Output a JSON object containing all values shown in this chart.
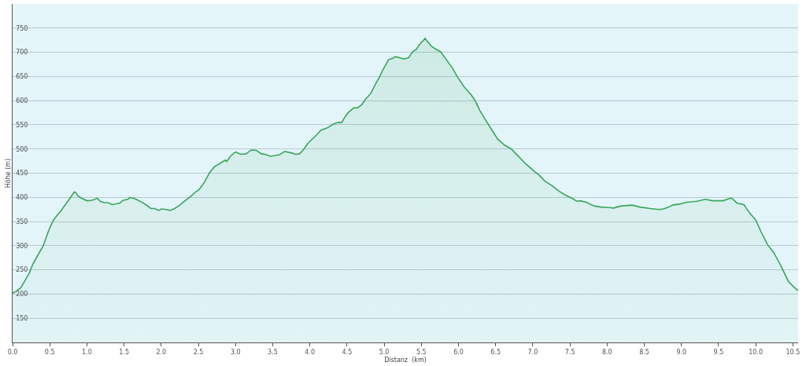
{
  "chart_data": {
    "type": "area",
    "xlabel": "Distanz  (km)",
    "ylabel": "Höhe (m)",
    "x": [
      0,
      0.04,
      0.11,
      0.16,
      0.22,
      0.27,
      0.32,
      0.36,
      0.41,
      0.44,
      0.5,
      0.55,
      0.59,
      0.65,
      0.71,
      0.74,
      0.78,
      0.83,
      0.85,
      0.88,
      0.93,
      1.0,
      1.07,
      1.14,
      1.18,
      1.23,
      1.28,
      1.34,
      1.44,
      1.49,
      1.55,
      1.58,
      1.63,
      1.69,
      1.76,
      1.81,
      1.86,
      1.91,
      1.97,
      2.0,
      2.07,
      2.12,
      2.18,
      2.25,
      2.32,
      2.39,
      2.46,
      2.51,
      2.58,
      2.65,
      2.72,
      2.79,
      2.86,
      2.88,
      2.93,
      3.0,
      3.07,
      3.14,
      3.21,
      3.28,
      3.35,
      3.4,
      3.47,
      3.59,
      3.66,
      3.75,
      3.81,
      3.86,
      3.91,
      3.98,
      4.07,
      4.15,
      4.24,
      4.31,
      4.38,
      4.43,
      4.47,
      4.52,
      4.59,
      4.64,
      4.7,
      4.75,
      4.82,
      4.89,
      4.94,
      4.99,
      5.06,
      5.12,
      5.15,
      5.2,
      5.27,
      5.33,
      5.38,
      5.43,
      5.5,
      5.52,
      5.55,
      5.59,
      5.64,
      5.69,
      5.76,
      5.85,
      5.92,
      5.99,
      6.08,
      6.17,
      6.22,
      6.29,
      6.36,
      6.45,
      6.53,
      6.62,
      6.71,
      6.8,
      6.9,
      7.01,
      7.08,
      7.16,
      7.25,
      7.36,
      7.46,
      7.53,
      7.59,
      7.64,
      7.72,
      7.83,
      7.92,
      8.02,
      8.09,
      8.18,
      8.34,
      8.44,
      8.58,
      8.7,
      8.76,
      8.83,
      8.88,
      8.97,
      9.07,
      9.21,
      9.32,
      9.42,
      9.56,
      9.65,
      9.68,
      9.75,
      9.84,
      9.91,
      10.0,
      10.07,
      10.16,
      10.24,
      10.33,
      10.44,
      10.51,
      10.57
    ],
    "series": [
      {
        "color": "#3aa55b",
        "values": [
          202,
          205,
          213,
          226,
          242,
          261,
          275,
          286,
          299,
          312,
          337,
          353,
          361,
          372,
          385,
          391,
          400,
          411,
          410,
          403,
          398,
          393,
          394,
          398,
          392,
          389,
          389,
          385,
          388,
          394,
          396,
          400,
          398,
          394,
          388,
          383,
          377,
          377,
          373,
          376,
          375,
          373,
          377,
          384,
          393,
          401,
          411,
          416,
          431,
          451,
          464,
          470,
          477,
          474,
          485,
          494,
          489,
          490,
          498,
          497,
          490,
          489,
          485,
          488,
          495,
          492,
          489,
          490,
          498,
          513,
          526,
          539,
          544,
          551,
          555,
          555,
          566,
          576,
          585,
          585,
          592,
          603,
          615,
          636,
          650,
          666,
          685,
          688,
          691,
          689,
          686,
          689,
          701,
          706,
          721,
          723,
          729,
          721,
          712,
          707,
          701,
          682,
          667,
          648,
          628,
          612,
          601,
          579,
          561,
          539,
          520,
          508,
          500,
          486,
          470,
          455,
          447,
          434,
          425,
          412,
          403,
          398,
          392,
          393,
          390,
          382,
          380,
          379,
          378,
          382,
          384,
          380,
          377,
          375,
          376,
          380,
          384,
          386,
          390,
          392,
          396,
          393,
          393,
          398,
          398,
          388,
          385,
          369,
          353,
          329,
          302,
          286,
          261,
          226,
          215,
          207
        ]
      }
    ],
    "xlim": [
      0,
      10.57
    ],
    "ylim": [
      100,
      800
    ],
    "xticks": [
      {
        "value": 0,
        "label": "0.0"
      },
      {
        "value": 0.5,
        "label": "0.5"
      },
      {
        "value": 1,
        "label": "1.0"
      },
      {
        "value": 1.5,
        "label": "1.5"
      },
      {
        "value": 2,
        "label": "2.0"
      },
      {
        "value": 2.5,
        "label": "2.5"
      },
      {
        "value": 3,
        "label": "3.0"
      },
      {
        "value": 3.5,
        "label": "3.5"
      },
      {
        "value": 4,
        "label": "4.0"
      },
      {
        "value": 4.5,
        "label": "4.5"
      },
      {
        "value": 5,
        "label": "5.0"
      },
      {
        "value": 5.5,
        "label": "5.5"
      },
      {
        "value": 6,
        "label": "6.0"
      },
      {
        "value": 6.5,
        "label": "6.5"
      },
      {
        "value": 7,
        "label": "7.0"
      },
      {
        "value": 7.5,
        "label": "7.5"
      },
      {
        "value": 8,
        "label": "8.0"
      },
      {
        "value": 8.5,
        "label": "8.5"
      },
      {
        "value": 9,
        "label": "9.0"
      },
      {
        "value": 9.5,
        "label": "9.5"
      },
      {
        "value": 10,
        "label": "10.0"
      },
      {
        "value": 10.5,
        "label": "10.5"
      }
    ],
    "yticks": [
      150,
      200,
      250,
      300,
      350,
      400,
      450,
      500,
      550,
      600,
      650,
      700,
      750
    ],
    "grid": "y"
  }
}
